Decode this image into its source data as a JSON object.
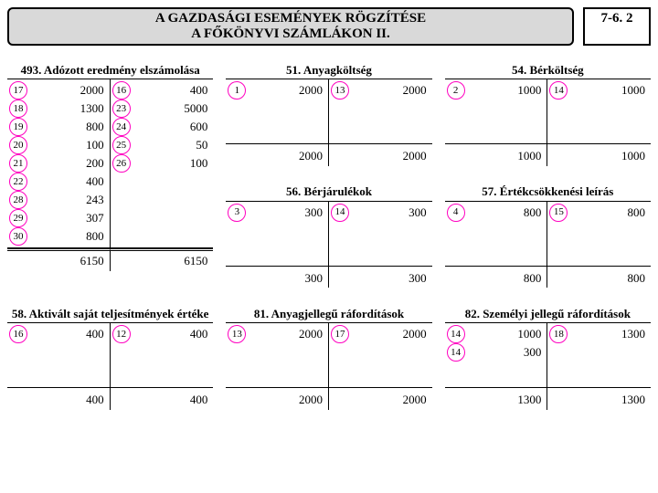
{
  "page": "7-6. 2",
  "title_line1": "A GAZDASÁGI ESEMÉNYEK RÖGZÍTÉSE",
  "title_line2": "A FŐKÖNYVI SZÁMLÁKON II.",
  "accounts": {
    "a493": {
      "title": "493. Adózott eredmény elszámolása",
      "debit": [
        {
          "ref": "17",
          "amt": "2000"
        },
        {
          "ref": "18",
          "amt": "1300"
        },
        {
          "ref": "19",
          "amt": "800"
        },
        {
          "ref": "20",
          "amt": "100"
        },
        {
          "ref": "21",
          "amt": "200"
        },
        {
          "ref": "22",
          "amt": "400"
        },
        {
          "ref": "28",
          "amt": "243"
        },
        {
          "ref": "29",
          "amt": "307"
        },
        {
          "ref": "30",
          "amt": "800"
        }
      ],
      "credit": [
        {
          "ref": "16",
          "amt": "400"
        },
        {
          "ref": "23",
          "amt": "5000"
        },
        {
          "ref": "24",
          "amt": "600"
        },
        {
          "ref": "25",
          "amt": "50"
        },
        {
          "ref": "26",
          "amt": "100"
        }
      ],
      "total_debit": "6150",
      "total_credit": "6150"
    },
    "a51": {
      "title": "51. Anyagköltség",
      "debit": [
        {
          "ref": "1",
          "amt": "2000"
        }
      ],
      "credit": [
        {
          "ref": "13",
          "amt": "2000"
        }
      ],
      "total_debit": "2000",
      "total_credit": "2000"
    },
    "a54": {
      "title": "54. Bérköltség",
      "debit": [
        {
          "ref": "2",
          "amt": "1000"
        }
      ],
      "credit": [
        {
          "ref": "14",
          "amt": "1000"
        }
      ],
      "total_debit": "1000",
      "total_credit": "1000"
    },
    "a56": {
      "title": "56. Bérjárulékok",
      "debit": [
        {
          "ref": "3",
          "amt": "300"
        }
      ],
      "credit": [
        {
          "ref": "14",
          "amt": "300"
        }
      ],
      "total_debit": "300",
      "total_credit": "300"
    },
    "a57": {
      "title": "57. Értékcsökkenési leírás",
      "debit": [
        {
          "ref": "4",
          "amt": "800"
        }
      ],
      "credit": [
        {
          "ref": "15",
          "amt": "800"
        }
      ],
      "total_debit": "800",
      "total_credit": "800"
    },
    "a58": {
      "title": "58. Aktivált saját teljesítmények értéke",
      "debit": [
        {
          "ref": "16",
          "amt": "400"
        }
      ],
      "credit": [
        {
          "ref": "12",
          "amt": "400"
        }
      ],
      "total_debit": "400",
      "total_credit": "400"
    },
    "a81": {
      "title": "81. Anyagjellegű ráfordítások",
      "debit": [
        {
          "ref": "13",
          "amt": "2000"
        }
      ],
      "credit": [
        {
          "ref": "17",
          "amt": "2000"
        }
      ],
      "total_debit": "2000",
      "total_credit": "2000"
    },
    "a82": {
      "title": "82. Személyi jellegű ráfordítások",
      "debit": [
        {
          "ref": "14",
          "amt": "1000"
        },
        {
          "ref": "14",
          "amt": "300"
        }
      ],
      "credit": [
        {
          "ref": "18",
          "amt": "1300"
        }
      ],
      "total_debit": "1300",
      "total_credit": "1300"
    }
  },
  "colors": {
    "circle": "#ff00c0",
    "header_bg": "#d9d9d9"
  }
}
